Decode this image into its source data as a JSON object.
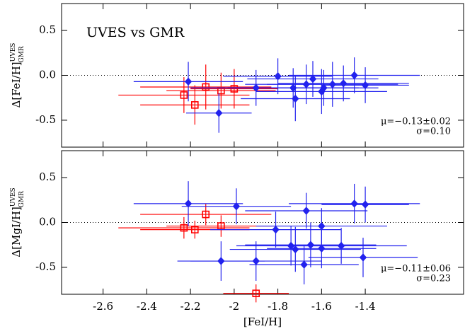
{
  "chart_data": [
    {
      "type": "scatter",
      "title": "UVES vs GMR",
      "ylabel": "Δ[FeI/H]",
      "ylabel_sup": "UVES",
      "ylabel_sub": "GMR",
      "annotations": [
        "μ=−0.13±0.02",
        "σ=0.10"
      ],
      "xlim": [
        -2.79,
        -0.95
      ],
      "ylim": [
        -0.8,
        0.8
      ],
      "yticks": [
        0.5,
        {
          "value": 0,
          "label": "0.0"
        },
        -0.5
      ],
      "hline": 0,
      "series": [
        {
          "color": "#ff0000",
          "marker": "square",
          "x": [
            -2.23,
            -2.18,
            -2.13,
            -2.06,
            -2.0
          ],
          "y": [
            -0.22,
            -0.33,
            -0.13,
            -0.17,
            -0.15
          ],
          "xerr": [
            0.3,
            0.25,
            0.3,
            0.25,
            0.2
          ],
          "yerr": [
            0.2,
            0.22,
            0.25,
            0.2,
            0.22
          ]
        },
        {
          "color": "#2222ee",
          "marker": "diamond",
          "x": [
            -2.21,
            -2.07,
            -1.9,
            -1.8,
            -1.73,
            -1.72,
            -1.67,
            -1.64,
            -1.6,
            -1.59,
            -1.55,
            -1.5,
            -1.45,
            -1.4
          ],
          "y": [
            -0.07,
            -0.42,
            -0.14,
            -0.01,
            -0.14,
            -0.26,
            -0.1,
            -0.04,
            -0.18,
            -0.14,
            -0.1,
            -0.09,
            0.0,
            -0.11
          ],
          "xerr": [
            0.25,
            0.15,
            0.3,
            0.25,
            0.3,
            0.25,
            0.28,
            0.3,
            0.3,
            0.25,
            0.3,
            0.3,
            0.3,
            0.2
          ],
          "yerr": [
            0.22,
            0.22,
            0.2,
            0.2,
            0.22,
            0.25,
            0.22,
            0.2,
            0.25,
            0.2,
            0.25,
            0.2,
            0.2,
            0.2
          ]
        }
      ]
    },
    {
      "type": "scatter",
      "xlabel": "[FeI/H]",
      "ylabel": "Δ[MgI/H]",
      "ylabel_sup": "UVES",
      "ylabel_sub": "GMR",
      "annotations": [
        "μ=−0.11±0.06",
        "σ=0.23"
      ],
      "xlim": [
        -2.79,
        -0.95
      ],
      "ylim": [
        -0.8,
        0.8
      ],
      "xticks": [
        -2.6,
        -2.4,
        -2.2,
        -2.0,
        -1.8,
        -1.6,
        -1.4
      ],
      "yticks": [
        0.5,
        {
          "value": 0,
          "label": "0.0"
        },
        -0.5
      ],
      "hline": 0,
      "series": [
        {
          "color": "#ff0000",
          "marker": "square",
          "x": [
            -2.23,
            -2.18,
            -2.13,
            -2.06,
            -1.9
          ],
          "y": [
            -0.06,
            -0.08,
            0.09,
            -0.04,
            -0.79
          ],
          "xerr": [
            0.3,
            0.25,
            0.3,
            0.25,
            0.15
          ],
          "yerr": [
            0.12,
            0.1,
            0.12,
            0.12,
            0.1
          ]
        },
        {
          "color": "#2222ee",
          "marker": "diamond",
          "x": [
            -2.21,
            -2.06,
            -1.99,
            -1.9,
            -1.81,
            -1.74,
            -1.72,
            -1.68,
            -1.67,
            -1.65,
            -1.6,
            -1.6,
            -1.51,
            -1.45,
            -1.4,
            -1.41
          ],
          "y": [
            0.21,
            -0.43,
            0.18,
            -0.43,
            -0.08,
            -0.26,
            -0.3,
            -0.47,
            0.13,
            -0.25,
            -0.04,
            -0.29,
            -0.26,
            0.21,
            0.2,
            -0.39
          ],
          "xerr": [
            0.25,
            0.2,
            0.25,
            0.3,
            0.3,
            0.25,
            0.3,
            0.25,
            0.28,
            0.3,
            0.3,
            0.25,
            0.3,
            0.3,
            0.2,
            0.25
          ],
          "yerr": [
            0.25,
            0.22,
            0.2,
            0.22,
            0.2,
            0.22,
            0.25,
            0.22,
            0.2,
            0.25,
            0.2,
            0.22,
            0.2,
            0.22,
            0.2,
            0.22
          ]
        }
      ]
    }
  ]
}
